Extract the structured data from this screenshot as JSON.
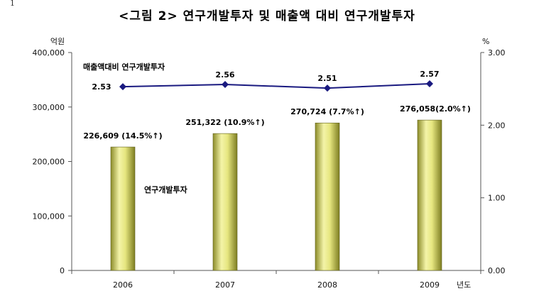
{
  "corner_mark": "1",
  "chart_data": {
    "type": "bar+line",
    "title": "<그림 2> 연구개발투자 및 매출액 대비 연구개발투자",
    "categories": [
      "2006",
      "2007",
      "2008",
      "2009"
    ],
    "x_unit": "년도",
    "left_axis": {
      "unit": "억원",
      "ylim": [
        0,
        400000
      ],
      "ticks": [
        "0",
        "100,000",
        "200,000",
        "300,000",
        "400,000"
      ]
    },
    "right_axis": {
      "unit": "%",
      "ylim": [
        0,
        3
      ],
      "ticks": [
        "0.00",
        "1.00",
        "2.00",
        "3.00"
      ]
    },
    "bar_series": {
      "name": "연구개발투자",
      "values": [
        226609,
        251322,
        270724,
        276058
      ],
      "labels": [
        "226,609 (14.5%↑)",
        "251,322 (10.9%↑)",
        "270,724 (7.7%↑)",
        "276,058(2.0%↑)"
      ],
      "color": "#d8d870"
    },
    "line_series": {
      "name": "매출액대비 연구개발투자",
      "values": [
        2.53,
        2.56,
        2.51,
        2.57
      ],
      "labels": [
        "2.53",
        "2.56",
        "2.51",
        "2.57"
      ],
      "color": "#1a1a80"
    },
    "grid": false
  }
}
